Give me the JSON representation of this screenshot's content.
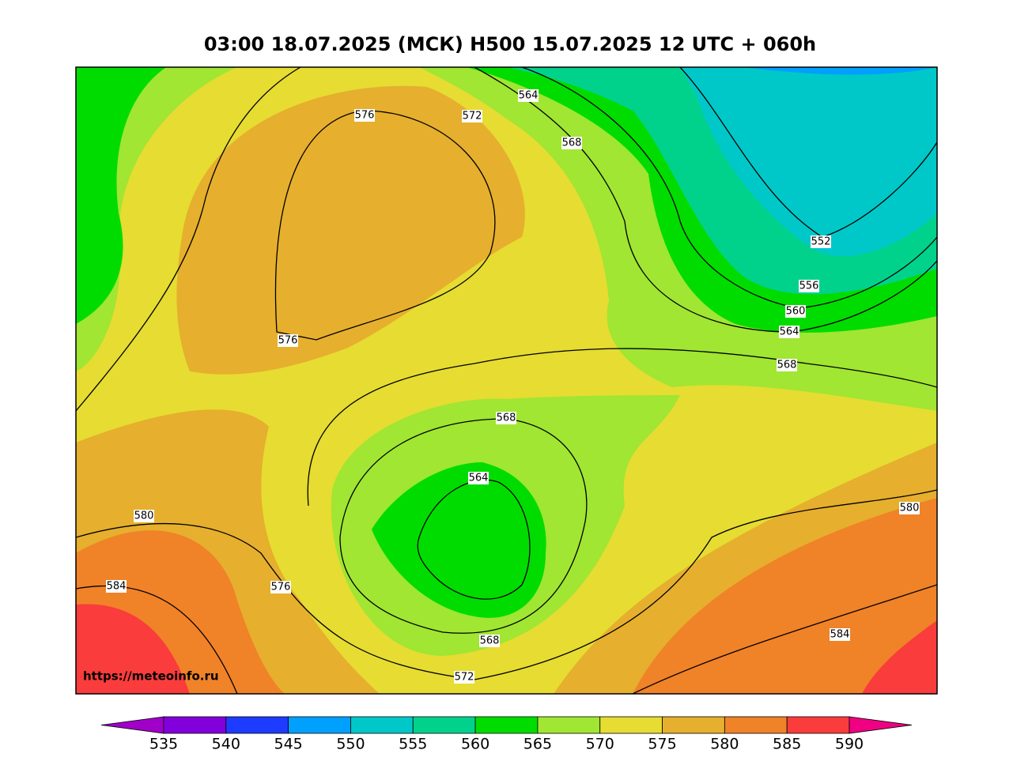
{
  "title": "03:00 18.07.2025 (МСК) H500  15.07.2025 12 UTC + 060h",
  "watermark": "https://meteoinfo.ru",
  "contour_labels": [
    576,
    572,
    564,
    568,
    552,
    556,
    560,
    564,
    568,
    576,
    568,
    564,
    580,
    580,
    584,
    576,
    568,
    572,
    584
  ],
  "colorbar": {
    "levels": [
      535,
      540,
      545,
      550,
      555,
      560,
      565,
      570,
      575,
      580,
      585,
      590
    ],
    "colors": [
      "#a000c8",
      "#8200dc",
      "#1e3cff",
      "#00a0ff",
      "#00c8c8",
      "#00d28c",
      "#00dc00",
      "#a0e632",
      "#e6dc32",
      "#e6af2d",
      "#f08228",
      "#fa3c3c",
      "#f00082"
    ]
  }
}
